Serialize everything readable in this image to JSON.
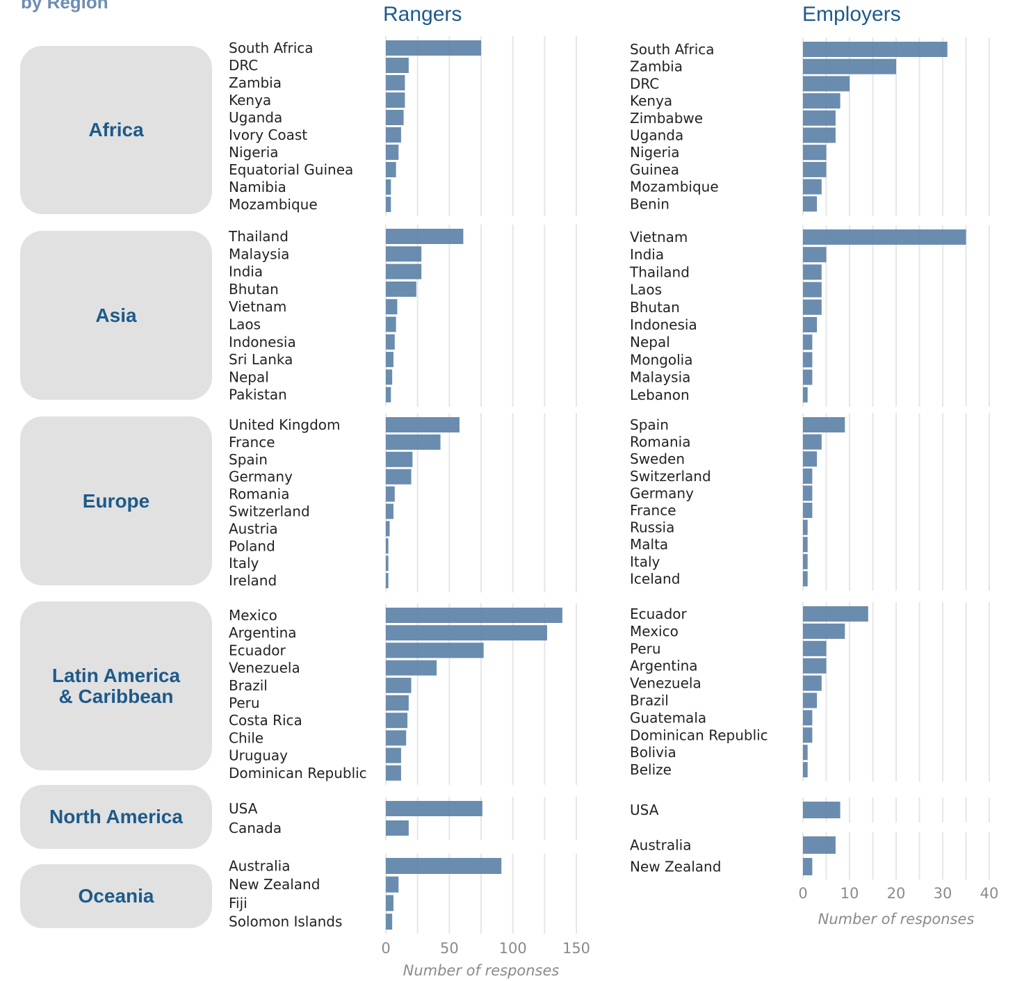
{
  "heading": "by Region",
  "columns": {
    "rangers": "Rangers",
    "employers": "Employers"
  },
  "regions": [
    "Africa",
    "Asia",
    "Europe",
    "Latin America & Caribbean",
    "North America",
    "Oceania"
  ],
  "colors": {
    "bar": "#5a7fa5",
    "region_box": "#e1e1e1",
    "title": "#1d5a8a",
    "grid": "#e6e6e6"
  },
  "chart_data": [
    {
      "type": "bar",
      "orientation": "horizontal",
      "panel": "Rangers",
      "xlabel": "Number of responses",
      "xlim": [
        0,
        150
      ],
      "xticks": [
        0,
        50,
        100,
        150
      ],
      "grid": true,
      "facets": [
        {
          "region": "Africa",
          "categories": [
            "South Africa",
            "DRC",
            "Zambia",
            "Kenya",
            "Uganda",
            "Ivory Coast",
            "Nigeria",
            "Equatorial Guinea",
            "Namibia",
            "Mozambique"
          ],
          "values": [
            75,
            18,
            15,
            15,
            14,
            12,
            10,
            8,
            4,
            4
          ]
        },
        {
          "region": "Asia",
          "categories": [
            "Thailand",
            "Malaysia",
            "India",
            "Bhutan",
            "Vietnam",
            "Laos",
            "Indonesia",
            "Sri Lanka",
            "Nepal",
            "Pakistan"
          ],
          "values": [
            61,
            28,
            28,
            24,
            9,
            8,
            7,
            6,
            5,
            4
          ]
        },
        {
          "region": "Europe",
          "categories": [
            "United Kingdom",
            "France",
            "Spain",
            "Germany",
            "Romania",
            "Switzerland",
            "Austria",
            "Poland",
            "Italy",
            "Ireland"
          ],
          "values": [
            58,
            43,
            21,
            20,
            7,
            6,
            3,
            2,
            2,
            2
          ]
        },
        {
          "region": "Latin America & Caribbean",
          "categories": [
            "Mexico",
            "Argentina",
            "Ecuador",
            "Venezuela",
            "Brazil",
            "Peru",
            "Costa Rica",
            "Chile",
            "Uruguay",
            "Dominican Republic"
          ],
          "values": [
            139,
            127,
            77,
            40,
            20,
            18,
            17,
            16,
            12,
            12
          ]
        },
        {
          "region": "North America",
          "categories": [
            "USA",
            "Canada"
          ],
          "values": [
            76,
            18
          ]
        },
        {
          "region": "Oceania",
          "categories": [
            "Australia",
            "New Zealand",
            "Fiji",
            "Solomon Islands"
          ],
          "values": [
            91,
            10,
            6,
            5
          ]
        }
      ]
    },
    {
      "type": "bar",
      "orientation": "horizontal",
      "panel": "Employers",
      "xlabel": "Number of responses",
      "xlim": [
        0,
        40
      ],
      "xticks": [
        0,
        10,
        20,
        30,
        40
      ],
      "grid": true,
      "facets": [
        {
          "region": "Africa",
          "categories": [
            "South Africa",
            "Zambia",
            "DRC",
            "Kenya",
            "Zimbabwe",
            "Uganda",
            "Nigeria",
            "Guinea",
            "Mozambique",
            "Benin"
          ],
          "values": [
            31,
            20,
            10,
            8,
            7,
            7,
            5,
            5,
            4,
            3
          ]
        },
        {
          "region": "Asia",
          "categories": [
            "Vietnam",
            "India",
            "Thailand",
            "Laos",
            "Bhutan",
            "Indonesia",
            "Nepal",
            "Mongolia",
            "Malaysia",
            "Lebanon"
          ],
          "values": [
            35,
            5,
            4,
            4,
            4,
            3,
            2,
            2,
            2,
            1
          ]
        },
        {
          "region": "Europe",
          "categories": [
            "Spain",
            "Romania",
            "Sweden",
            "Switzerland",
            "Germany",
            "France",
            "Russia",
            "Malta",
            "Italy",
            "Iceland"
          ],
          "values": [
            9,
            4,
            3,
            2,
            2,
            2,
            1,
            1,
            1,
            1
          ]
        },
        {
          "region": "Latin America & Caribbean",
          "categories": [
            "Ecuador",
            "Mexico",
            "Peru",
            "Argentina",
            "Venezuela",
            "Brazil",
            "Guatemala",
            "Dominican Republic",
            "Bolivia",
            "Belize"
          ],
          "values": [
            14,
            9,
            5,
            5,
            4,
            3,
            2,
            2,
            1,
            1
          ]
        },
        {
          "region": "North America",
          "categories": [
            "USA"
          ],
          "values": [
            8
          ]
        },
        {
          "region": "Oceania",
          "categories": [
            "Australia",
            "New Zealand"
          ],
          "values": [
            7,
            2
          ]
        }
      ]
    }
  ]
}
